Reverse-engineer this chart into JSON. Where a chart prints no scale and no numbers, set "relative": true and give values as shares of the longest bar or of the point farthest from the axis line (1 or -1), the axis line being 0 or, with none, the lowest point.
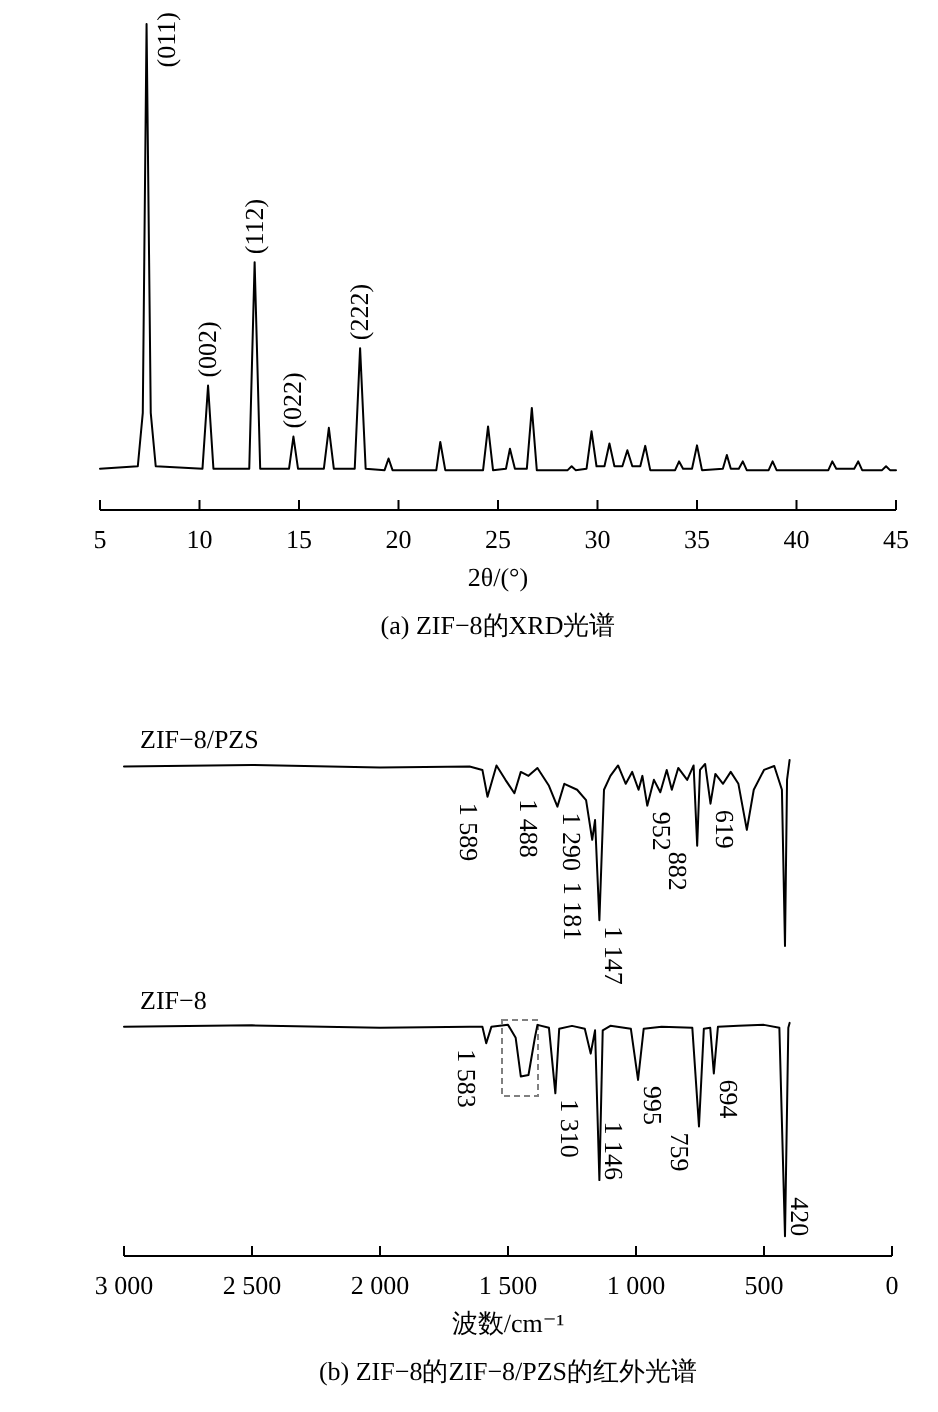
{
  "chart_data": [
    {
      "type": "line",
      "relative": true,
      "title": "(a) ZIF−8的XRD光谱",
      "xlabel": "2θ/(°)",
      "xlim": [
        5,
        45
      ],
      "xticks": [
        5,
        10,
        15,
        20,
        25,
        30,
        35,
        40,
        45
      ],
      "x": [
        5,
        6.9,
        7.15,
        7.34,
        7.55,
        7.8,
        10.15,
        10.43,
        10.7,
        12.5,
        12.77,
        13.05,
        14.5,
        14.72,
        14.95,
        16.25,
        16.5,
        16.75,
        17.8,
        18.07,
        18.35,
        19.3,
        19.5,
        19.7,
        21.9,
        22.1,
        22.35,
        24.25,
        24.5,
        24.75,
        25.4,
        25.6,
        25.85,
        26.45,
        26.7,
        26.95,
        28.5,
        28.7,
        28.9,
        29.45,
        29.7,
        29.95,
        30.35,
        30.6,
        30.85,
        31.25,
        31.5,
        31.75,
        32.15,
        32.4,
        32.65,
        33.9,
        34.1,
        34.3,
        34.75,
        35,
        35.25,
        36.3,
        36.5,
        36.7,
        37.1,
        37.3,
        37.5,
        38.6,
        38.8,
        39,
        41.6,
        41.8,
        42,
        42.9,
        43.1,
        43.3,
        44.3,
        44.5,
        44.7,
        45
      ],
      "series": [
        {
          "color": "#000000",
          "values": [
            0.085,
            0.09,
            0.2,
            1,
            0.2,
            0.09,
            0.085,
            0.256,
            0.085,
            0.085,
            0.51,
            0.085,
            0.085,
            0.151,
            0.085,
            0.085,
            0.169,
            0.085,
            0.085,
            0.333,
            0.085,
            0.082,
            0.106,
            0.082,
            0.082,
            0.14,
            0.082,
            0.082,
            0.172,
            0.082,
            0.085,
            0.126,
            0.085,
            0.085,
            0.21,
            0.082,
            0.082,
            0.09,
            0.082,
            0.085,
            0.162,
            0.09,
            0.09,
            0.137,
            0.09,
            0.09,
            0.123,
            0.09,
            0.09,
            0.132,
            0.082,
            0.082,
            0.1,
            0.085,
            0.085,
            0.133,
            0.082,
            0.085,
            0.113,
            0.085,
            0.085,
            0.1,
            0.082,
            0.082,
            0.1,
            0.082,
            0.082,
            0.1,
            0.085,
            0.085,
            0.1,
            0.082,
            0.082,
            0.09,
            0.082,
            0.082
          ]
        }
      ],
      "annotations": [
        {
          "text": "(011)",
          "x": 7.34,
          "y": 1
        },
        {
          "text": "(002)",
          "x": 10.43,
          "y": 0.256
        },
        {
          "text": "(112)",
          "x": 12.77,
          "y": 0.51
        },
        {
          "text": "(022)",
          "x": 14.72,
          "y": 0.151
        },
        {
          "text": "(222)",
          "x": 18.07,
          "y": 0.333
        }
      ]
    },
    {
      "type": "line",
      "relative": true,
      "title": "(b) ZIF−8的ZIF−8/PZS的红外光谱",
      "xlabel": "波数/cm⁻¹",
      "xlim": [
        3000,
        0
      ],
      "xticks": [
        {
          "value": 3000,
          "label": "3 000"
        },
        {
          "value": 2500,
          "label": "2 500"
        },
        {
          "value": 2000,
          "label": "2 000"
        },
        {
          "value": 1500,
          "label": "1 500"
        },
        {
          "value": 1000,
          "label": "1 000"
        },
        {
          "value": 500,
          "label": "500"
        },
        0
      ],
      "series": [
        {
          "name": "ZIF−8/PZS",
          "color": "#000000",
          "x": [
            3000,
            2500,
            2000,
            1650,
            1600,
            1580,
            1545,
            1510,
            1475,
            1450,
            1420,
            1385,
            1340,
            1307,
            1280,
            1230,
            1195,
            1171,
            1160,
            1143,
            1125,
            1100,
            1070,
            1040,
            1015,
            990,
            975,
            956,
            930,
            905,
            880,
            860,
            835,
            800,
            775,
            761,
            750,
            730,
            709,
            690,
            660,
            630,
            600,
            567,
            540,
            500,
            460,
            430,
            418,
            410,
            400
          ],
          "values": [
            0.987,
            0.99,
            0.985,
            0.987,
            0.98,
            0.926,
            0.989,
            0.96,
            0.933,
            0.976,
            0.968,
            0.984,
            0.948,
            0.906,
            0.952,
            0.94,
            0.919,
            0.839,
            0.879,
            0.677,
            0.94,
            0.968,
            0.989,
            0.952,
            0.976,
            0.94,
            0.968,
            0.908,
            0.96,
            0.935,
            0.98,
            0.94,
            0.984,
            0.96,
            0.989,
            0.827,
            0.98,
            0.992,
            0.912,
            0.972,
            0.952,
            0.976,
            0.952,
            0.859,
            0.94,
            0.98,
            0.988,
            0.94,
            0.625,
            0.96,
            1
          ]
        },
        {
          "name": "ZIF−8",
          "color": "#000000",
          "x": [
            3000,
            2500,
            2000,
            1650,
            1600,
            1585,
            1565,
            1500,
            1470,
            1450,
            1420,
            1395,
            1385,
            1340,
            1315,
            1300,
            1250,
            1200,
            1177,
            1160,
            1143,
            1130,
            1100,
            1020,
            992,
            970,
            900,
            780,
            754,
            735,
            710,
            696,
            680,
            600,
            500,
            440,
            418,
            405,
            400
          ],
          "values": [
            0.462,
            0.465,
            0.46,
            0.462,
            0.462,
            0.429,
            0.462,
            0.466,
            0.44,
            0.362,
            0.365,
            0.44,
            0.466,
            0.46,
            0.328,
            0.458,
            0.464,
            0.458,
            0.408,
            0.455,
            0.153,
            0.455,
            0.464,
            0.458,
            0.355,
            0.458,
            0.462,
            0.46,
            0.261,
            0.458,
            0.46,
            0.368,
            0.462,
            0.464,
            0.466,
            0.46,
            0.04,
            0.46,
            0.47
          ]
        }
      ],
      "annotations": [
        {
          "text": "1 589",
          "x": 1580,
          "y": 0.926
        },
        {
          "text": "1 488",
          "x": 1475,
          "y": 0.933
        },
        {
          "text": "1 290",
          "x": 1307,
          "y": 0.906
        },
        {
          "text": "1 181",
          "x": 1171,
          "y": 0.839
        },
        {
          "text": "1 147",
          "x": 1143,
          "y": 0.677
        },
        {
          "text": "952",
          "x": 956,
          "y": 0.908
        },
        {
          "text": "882",
          "x": 761,
          "y": 0.827
        },
        {
          "text": "619",
          "x": 709,
          "y": 0.912
        },
        {
          "text": "1 583",
          "x": 1585,
          "y": 0.429
        },
        {
          "text": "1 310",
          "x": 1315,
          "y": 0.328
        },
        {
          "text": "1 146",
          "x": 1143,
          "y": 0.153
        },
        {
          "text": "995",
          "x": 992,
          "y": 0.355
        },
        {
          "text": "759",
          "x": 754,
          "y": 0.261
        },
        {
          "text": "694",
          "x": 696,
          "y": 0.368
        },
        {
          "text": "420",
          "x": 418,
          "y": 0.04
        }
      ]
    }
  ]
}
